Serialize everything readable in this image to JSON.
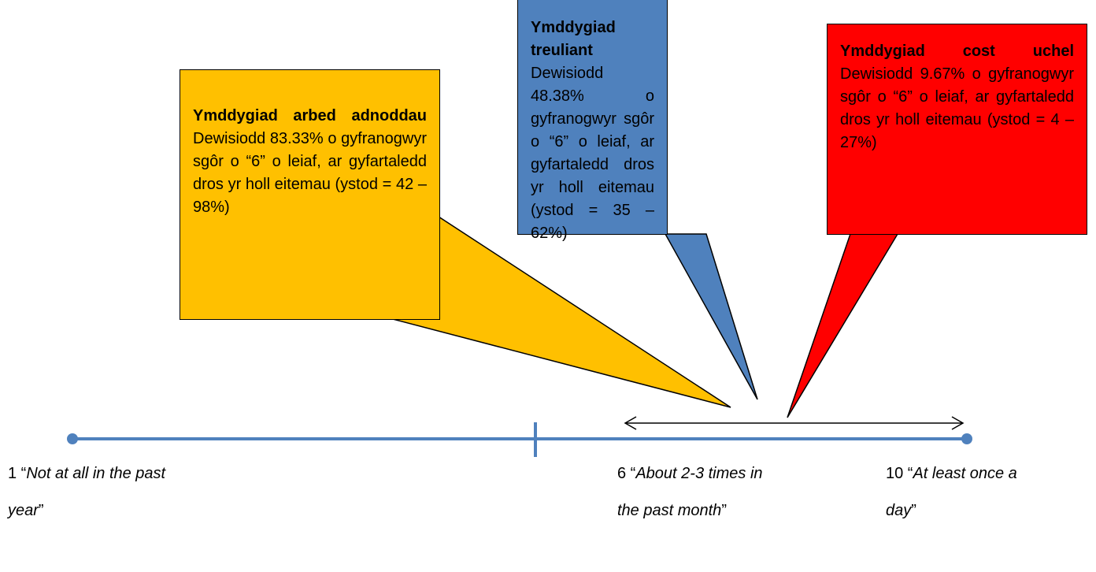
{
  "callouts": [
    {
      "title": "Ymddygiad arbed adnoddau",
      "body": "Dewisiodd 83.33% o gyfranogwyr sgôr o “6” o leiaf, ar gyfartaledd dros yr holl eitemau (ystod = 42 – 98%)",
      "color": "#ffc000"
    },
    {
      "title": "Ymddygiad treuliant",
      "body": "Dewisiodd 48.38% o gyfranogwyr sgôr o “6” o leiaf, ar gyfartaledd dros yr holl eitemau (ystod = 35 – 62%)",
      "color": "#4f81bd"
    },
    {
      "title": "Ymddygiad cost uchel",
      "body": "Dewisiodd 9.67% o gyfranogwyr sgôr o “6” o leiaf, ar gyfartaledd dros yr holl eitemau (ystod = 4 – 27%)",
      "color": "#ff0000"
    }
  ],
  "scale_labels": [
    [
      {
        "text": "1 “"
      },
      {
        "text": "Not at all in the past year",
        "italic": true
      },
      {
        "text": "”"
      }
    ],
    [
      {
        "text": "6 “"
      },
      {
        "text": "About 2-3 times in the past month",
        "italic": true
      },
      {
        "text": "”"
      }
    ],
    [
      {
        "text": "10 “"
      },
      {
        "text": "At least once a day",
        "italic": true
      },
      {
        "text": "”"
      }
    ]
  ]
}
